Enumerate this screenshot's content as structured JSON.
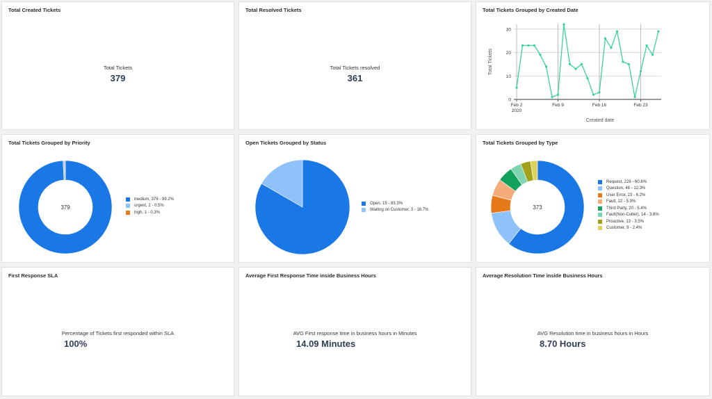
{
  "cards": {
    "total_created": {
      "title": "Total Created Tickets",
      "label": "Total Tickets",
      "value": "379"
    },
    "total_resolved": {
      "title": "Total Resolved Tickets",
      "label": "Total Tickets resolved",
      "value": "361"
    },
    "by_date": {
      "title": "Total Tickets Grouped by Created Date"
    },
    "by_priority": {
      "title": "Total Tickets Grouped by Priority",
      "center": "379"
    },
    "by_status": {
      "title": "Open Tickets Grouped by Status"
    },
    "by_type": {
      "title": "Total Tickets Grouped by Type",
      "center": "373"
    },
    "first_sla": {
      "title": "First Response SLA",
      "label": "Percentage of Tickets first responded within SLA",
      "value": "100%"
    },
    "avg_first": {
      "title": "Average First Response Time inside Business Hours",
      "label": "AVG First response time in business hours in Minutes",
      "value": "14.09 Minutes"
    },
    "avg_resolution": {
      "title": "Average Resolution Time inside Business Hours",
      "label": "AVG Resolution time in business hours in Hours",
      "value": "8.70 Hours"
    }
  },
  "chart_data": [
    {
      "type": "line",
      "title": "Total Tickets Grouped by Created Date",
      "xlabel": "Created date",
      "ylabel": "Total Tickets",
      "ylim": [
        0,
        32
      ],
      "y_ticks": [
        0,
        10,
        20,
        30
      ],
      "x_tick_labels": [
        "Feb 2",
        "Feb 9",
        "Feb 16",
        "Feb 23"
      ],
      "x_tick_sub": "2020",
      "x_dates": [
        "2020-02-02",
        "2020-02-03",
        "2020-02-04",
        "2020-02-05",
        "2020-02-06",
        "2020-02-07",
        "2020-02-08",
        "2020-02-09",
        "2020-02-10",
        "2020-02-11",
        "2020-02-12",
        "2020-02-13",
        "2020-02-14",
        "2020-02-15",
        "2020-02-16",
        "2020-02-17",
        "2020-02-18",
        "2020-02-19",
        "2020-02-20",
        "2020-02-21",
        "2020-02-22",
        "2020-02-23",
        "2020-02-24",
        "2020-02-25",
        "2020-02-26"
      ],
      "values": [
        5,
        23,
        23,
        23,
        19,
        14,
        1,
        2,
        32,
        15,
        13,
        15,
        9,
        2,
        3,
        26,
        22,
        29,
        16,
        15,
        1,
        12,
        23,
        19,
        29
      ],
      "color": "#3ad1a1",
      "grid": true
    },
    {
      "type": "pie",
      "title": "Total Tickets Grouped by Priority",
      "donut": true,
      "slices": [
        {
          "label": "medium",
          "value": 376,
          "legend": "medium, 376 - 99.2%",
          "color": "#1a78e6"
        },
        {
          "label": "urgent",
          "value": 2,
          "legend": "urgent, 2 - 0.5%",
          "color": "#8fc1fb"
        },
        {
          "label": "high",
          "value": 1,
          "legend": "high, 1 - 0.3%",
          "color": "#e67a1a"
        }
      ]
    },
    {
      "type": "pie",
      "title": "Open Tickets Grouped by Status",
      "donut": false,
      "slices": [
        {
          "label": "Open",
          "value": 15,
          "legend": "Open, 15 - 83.3%",
          "color": "#1a78e6"
        },
        {
          "label": "Waiting on Customer",
          "value": 3,
          "legend": "Waiting on Customer, 3 - 16.7%",
          "color": "#8fc1fb"
        }
      ]
    },
    {
      "type": "pie",
      "title": "Total Tickets Grouped by Type",
      "donut": true,
      "slices": [
        {
          "label": "Request",
          "value": 226,
          "legend": "Request, 226 - 60.6%",
          "color": "#1a78e6"
        },
        {
          "label": "Question",
          "value": 46,
          "legend": "Question, 46 - 12.3%",
          "color": "#8fc1fb"
        },
        {
          "label": "User Error",
          "value": 23,
          "legend": "User Error, 23 - 6.2%",
          "color": "#e67a1a"
        },
        {
          "label": "Fault",
          "value": 22,
          "legend": "Fault, 22 - 5.9%",
          "color": "#f5ac7a"
        },
        {
          "label": "Third Party",
          "value": 20,
          "legend": "Third Party, 20 - 5.4%",
          "color": "#12a25b"
        },
        {
          "label": "Fault(Non-Cutter)",
          "value": 14,
          "legend": "Fault(Non-Cutter), 14 - 3.8%",
          "color": "#7fd4b0"
        },
        {
          "label": "Proactive",
          "value": 13,
          "legend": "Proactive, 13 - 3.5%",
          "color": "#a4a11c"
        },
        {
          "label": "Customer",
          "value": 9,
          "legend": "Customer, 9 - 2.4%",
          "color": "#ded25e"
        }
      ]
    }
  ]
}
